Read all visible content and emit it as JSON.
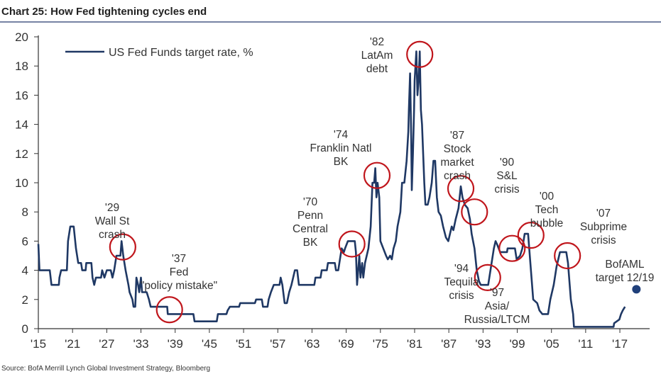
{
  "title": "Chart 25: How Fed tightening cycles end",
  "source": "Source:  BofA Merrill Lynch Global Investment Strategy, Bloomberg",
  "colors": {
    "line": "#1f3864",
    "circle": "#c0161c",
    "rule": "#4a5a85",
    "dot": "#1f3f7a"
  },
  "chart_data": {
    "type": "line",
    "title": "Chart 25: How Fed tightening cycles end",
    "xlabel": "",
    "ylabel": "",
    "xlim": [
      1915,
      2022
    ],
    "ylim": [
      0,
      20
    ],
    "grid": false,
    "legend_position": "top-left",
    "yticks": [
      "0",
      "2",
      "4",
      "6",
      "8",
      "10",
      "12",
      "14",
      "16",
      "18",
      "20"
    ],
    "xticks": [
      "'15",
      "'21",
      "'27",
      "'33",
      "'39",
      "'45",
      "'51",
      "'57",
      "'63",
      "'69",
      "'75",
      "'81",
      "'87",
      "'93",
      "'99",
      "'05",
      "'11",
      "'17"
    ],
    "series": [
      {
        "name": "US Fed Funds target rate, %",
        "points": [
          [
            1915,
            5.8
          ],
          [
            1915.2,
            4
          ],
          [
            1917,
            4
          ],
          [
            1917.3,
            3
          ],
          [
            1918.6,
            3
          ],
          [
            1918.7,
            3.5
          ],
          [
            1919,
            4
          ],
          [
            1920,
            4
          ],
          [
            1920.2,
            6
          ],
          [
            1920.6,
            7
          ],
          [
            1921.2,
            7
          ],
          [
            1921.6,
            5.5
          ],
          [
            1922,
            4.5
          ],
          [
            1922.5,
            4.5
          ],
          [
            1922.7,
            4
          ],
          [
            1923.3,
            4
          ],
          [
            1923.4,
            4.5
          ],
          [
            1924.3,
            4.5
          ],
          [
            1924.5,
            3.5
          ],
          [
            1924.8,
            3
          ],
          [
            1925.1,
            3.5
          ],
          [
            1926,
            3.5
          ],
          [
            1926.2,
            4
          ],
          [
            1926.6,
            3.5
          ],
          [
            1927,
            4
          ],
          [
            1927.7,
            4
          ],
          [
            1928,
            3.5
          ],
          [
            1928.3,
            4
          ],
          [
            1928.7,
            5
          ],
          [
            1929.4,
            5
          ],
          [
            1929.6,
            6
          ],
          [
            1929.9,
            5
          ],
          [
            1930.3,
            4
          ],
          [
            1930.8,
            3
          ],
          [
            1931,
            2.5
          ],
          [
            1931.5,
            2
          ],
          [
            1931.7,
            1.5
          ],
          [
            1932,
            1.5
          ],
          [
            1932.2,
            3.5
          ],
          [
            1932.5,
            3
          ],
          [
            1932.7,
            2.5
          ],
          [
            1933,
            3.5
          ],
          [
            1933.2,
            2.5
          ],
          [
            1934,
            2.5
          ],
          [
            1934.4,
            2
          ],
          [
            1934.7,
            1.5
          ],
          [
            1937.6,
            1.5
          ],
          [
            1937.7,
            1
          ],
          [
            1942.2,
            1
          ],
          [
            1942.4,
            0.5
          ],
          [
            1946.3,
            0.5
          ],
          [
            1946.5,
            1
          ],
          [
            1948,
            1
          ],
          [
            1948.2,
            1.25
          ],
          [
            1948.6,
            1.5
          ],
          [
            1950.2,
            1.5
          ],
          [
            1950.4,
            1.75
          ],
          [
            1953,
            1.75
          ],
          [
            1953.2,
            2
          ],
          [
            1954.2,
            2
          ],
          [
            1954.4,
            1.5
          ],
          [
            1955.2,
            1.5
          ],
          [
            1955.4,
            2
          ],
          [
            1955.8,
            2.5
          ],
          [
            1956.3,
            3
          ],
          [
            1957.3,
            3
          ],
          [
            1957.5,
            3.5
          ],
          [
            1957.8,
            3
          ],
          [
            1958.2,
            1.75
          ],
          [
            1958.6,
            1.75
          ],
          [
            1959,
            2.5
          ],
          [
            1959.4,
            3
          ],
          [
            1959.7,
            3.5
          ],
          [
            1960,
            4
          ],
          [
            1960.4,
            4
          ],
          [
            1960.7,
            3
          ],
          [
            1963.4,
            3
          ],
          [
            1963.6,
            3.5
          ],
          [
            1964.5,
            3.5
          ],
          [
            1964.7,
            4
          ],
          [
            1965.6,
            4
          ],
          [
            1965.8,
            4.5
          ],
          [
            1967,
            4.5
          ],
          [
            1967.2,
            4
          ],
          [
            1967.6,
            4
          ],
          [
            1967.8,
            4.5
          ],
          [
            1968.2,
            5.5
          ],
          [
            1968.6,
            5.25
          ],
          [
            1968.8,
            5.5
          ],
          [
            1969.3,
            6
          ],
          [
            1970.5,
            6
          ],
          [
            1970.7,
            5.25
          ],
          [
            1970.9,
            3
          ],
          [
            1971.1,
            4
          ],
          [
            1971.3,
            5
          ],
          [
            1971.5,
            3.5
          ],
          [
            1971.8,
            4.5
          ],
          [
            1972,
            3.5
          ],
          [
            1972.3,
            4.5
          ],
          [
            1972.9,
            5.5
          ],
          [
            1973.3,
            7
          ],
          [
            1973.6,
            10
          ],
          [
            1973.9,
            10
          ],
          [
            1974.1,
            11
          ],
          [
            1974.3,
            9
          ],
          [
            1974.5,
            10
          ],
          [
            1974.8,
            9
          ],
          [
            1975,
            6
          ],
          [
            1975.5,
            5.5
          ],
          [
            1976,
            5
          ],
          [
            1976.3,
            4.75
          ],
          [
            1976.7,
            5
          ],
          [
            1977,
            4.75
          ],
          [
            1977.3,
            5.5
          ],
          [
            1977.7,
            6
          ],
          [
            1978,
            7
          ],
          [
            1978.5,
            8
          ],
          [
            1978.8,
            10
          ],
          [
            1979.2,
            10
          ],
          [
            1979.6,
            11.5
          ],
          [
            1979.9,
            13.5
          ],
          [
            1980,
            15
          ],
          [
            1980.2,
            17.5
          ],
          [
            1980.4,
            13
          ],
          [
            1980.5,
            9.5
          ],
          [
            1980.7,
            12
          ],
          [
            1980.9,
            15
          ],
          [
            1981,
            17
          ],
          [
            1981.3,
            19
          ],
          [
            1981.5,
            16
          ],
          [
            1981.7,
            17
          ],
          [
            1981.9,
            19
          ],
          [
            1982.1,
            15
          ],
          [
            1982.3,
            14
          ],
          [
            1982.5,
            12
          ],
          [
            1982.7,
            10
          ],
          [
            1982.9,
            8.5
          ],
          [
            1983.3,
            8.5
          ],
          [
            1983.6,
            9
          ],
          [
            1984,
            10
          ],
          [
            1984.3,
            11.5
          ],
          [
            1984.6,
            11.5
          ],
          [
            1984.9,
            9
          ],
          [
            1985.2,
            8
          ],
          [
            1985.6,
            7.75
          ],
          [
            1986,
            7
          ],
          [
            1986.5,
            6.25
          ],
          [
            1986.9,
            6
          ],
          [
            1987.2,
            6.5
          ],
          [
            1987.5,
            7
          ],
          [
            1987.8,
            6.75
          ],
          [
            1988.2,
            7.5
          ],
          [
            1988.7,
            8.25
          ],
          [
            1989.1,
            9.75
          ],
          [
            1989.4,
            9
          ],
          [
            1989.8,
            8.5
          ],
          [
            1990.3,
            8.25
          ],
          [
            1990.7,
            7.5
          ],
          [
            1991,
            6.5
          ],
          [
            1991.5,
            5.5
          ],
          [
            1991.9,
            4
          ],
          [
            1992.3,
            3.25
          ],
          [
            1992.6,
            3
          ],
          [
            1993.9,
            3
          ],
          [
            1994.1,
            3.5
          ],
          [
            1994.5,
            4.5
          ],
          [
            1994.9,
            5.5
          ],
          [
            1995.2,
            6
          ],
          [
            1995.5,
            5.75
          ],
          [
            1996,
            5.25
          ],
          [
            1997.2,
            5.25
          ],
          [
            1997.3,
            5.5
          ],
          [
            1998.6,
            5.5
          ],
          [
            1998.8,
            5
          ],
          [
            1998.9,
            4.75
          ],
          [
            1999.5,
            5
          ],
          [
            1999.9,
            5.5
          ],
          [
            2000.3,
            6.5
          ],
          [
            2000.9,
            6.5
          ],
          [
            2001.1,
            5.5
          ],
          [
            2001.4,
            4
          ],
          [
            2001.8,
            2
          ],
          [
            2002.5,
            1.75
          ],
          [
            2002.9,
            1.25
          ],
          [
            2003.4,
            1
          ],
          [
            2004.4,
            1
          ],
          [
            2004.8,
            2
          ],
          [
            2005.4,
            3
          ],
          [
            2005.9,
            4.25
          ],
          [
            2006.5,
            5.25
          ],
          [
            2007.6,
            5.25
          ],
          [
            2007.9,
            4.5
          ],
          [
            2008.2,
            3
          ],
          [
            2008.4,
            2
          ],
          [
            2008.8,
            1
          ],
          [
            2008.95,
            0.125
          ],
          [
            2015.9,
            0.125
          ],
          [
            2016,
            0.375
          ],
          [
            2016.9,
            0.625
          ],
          [
            2017.2,
            1
          ],
          [
            2017.5,
            1.25
          ],
          [
            2017.9,
            1.5
          ]
        ]
      }
    ],
    "target": {
      "label": "BofAML target 12/19",
      "x": 2019.9,
      "y": 2.7
    },
    "annotations": [
      {
        "lines": [
          "'29",
          "Wall St",
          "crash"
        ],
        "circle": [
          1929.8,
          5.6
        ]
      },
      {
        "lines": [
          "'37",
          "Fed",
          "\"policy mistake\""
        ],
        "circle": [
          1938,
          1.3
        ]
      },
      {
        "lines": [
          "'70",
          "Penn",
          "Central",
          "BK"
        ],
        "circle": [
          1970,
          5.8
        ]
      },
      {
        "lines": [
          "'74",
          "Franklin Natl",
          "BK"
        ],
        "circle": [
          1974.4,
          10.5
        ]
      },
      {
        "lines": [
          "'82",
          "LatAm",
          "debt"
        ],
        "circle": [
          1981.9,
          18.8
        ]
      },
      {
        "lines": [
          "'87",
          "Stock",
          "market",
          "crash"
        ],
        "circle": [
          1989.1,
          9.6
        ]
      },
      {
        "lines": [
          "'90",
          "S&L",
          "crisis"
        ],
        "circle": [
          1991.5,
          8.0
        ]
      },
      {
        "lines": [
          "'94",
          "Tequila",
          "crisis"
        ],
        "circle": [
          1993.8,
          3.5
        ]
      },
      {
        "lines": [
          "'97",
          "Asia/",
          "Russia/LTCM"
        ],
        "circle": [
          1998.1,
          5.5
        ]
      },
      {
        "lines": [
          "'00",
          "Tech",
          "bubble"
        ],
        "circle": [
          2001.4,
          6.4
        ]
      },
      {
        "lines": [
          "'07",
          "Subprime",
          "crisis"
        ],
        "circle": [
          2007.8,
          5.0
        ]
      },
      {
        "lines": [
          "BofAML",
          "target 12/19"
        ],
        "circle": null
      }
    ]
  }
}
